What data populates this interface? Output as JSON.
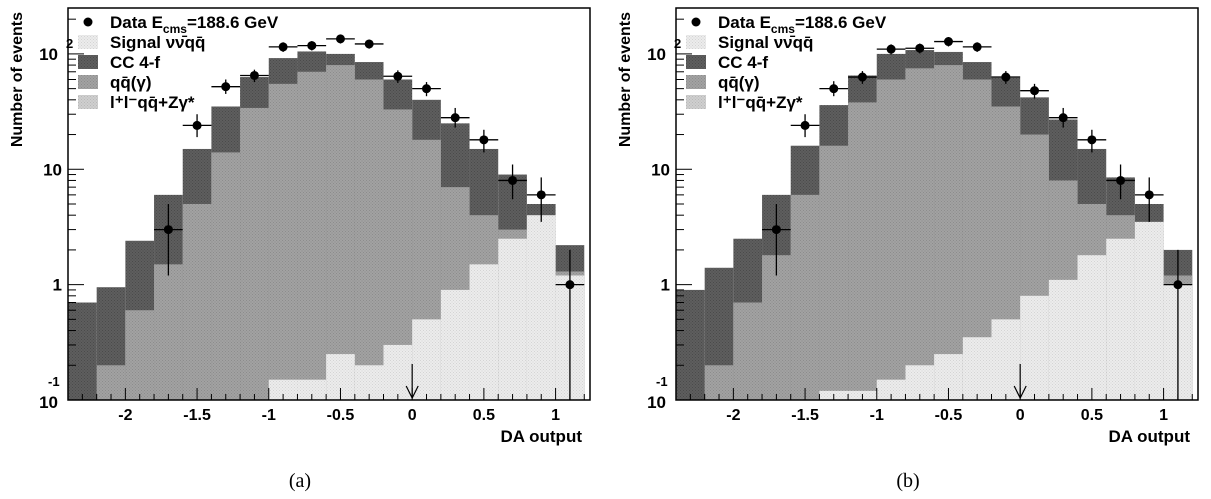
{
  "chart_data": [
    {
      "type": "bar",
      "panel_caption": "(a)",
      "xlabel": "DA output",
      "ylabel": "Number of events",
      "log_y": true,
      "xlim": [
        -2.4,
        1.24
      ],
      "ylim": [
        0.1,
        250
      ],
      "x_ticks": [
        -2,
        -1.5,
        -1,
        -0.5,
        0,
        0.5,
        1
      ],
      "y_tick_labels": [
        {
          "value": 0.1,
          "base": "10",
          "exp": "-1"
        },
        {
          "value": 1,
          "base": "1",
          "exp": ""
        },
        {
          "value": 10,
          "base": "10",
          "exp": ""
        },
        {
          "value": 100,
          "base": "10",
          "exp": "2"
        }
      ],
      "cut_arrow_x": 0,
      "bin_edges": [
        -2.4,
        -2.2,
        -2.0,
        -1.8,
        -1.6,
        -1.4,
        -1.2,
        -1.0,
        -0.8,
        -0.6,
        -0.4,
        -0.2,
        0.0,
        0.2,
        0.4,
        0.6,
        0.8,
        1.0,
        1.2
      ],
      "legend": [
        {
          "label": "Data E",
          "sub": "cms",
          "suffix": "=188.6 GeV",
          "style": "marker"
        },
        {
          "label": "Signal νν̄qq̄",
          "style": "signal"
        },
        {
          "label": "CC 4-f",
          "style": "cc4f"
        },
        {
          "label": "qq̄(γ)",
          "style": "qq"
        },
        {
          "label": "l⁺l⁻qq̄+Zγ*",
          "style": "llqq"
        }
      ],
      "series": [
        {
          "name": "l⁺l⁻qq̄+Zγ*",
          "cumulative_top": [
            0.1,
            0.1,
            0.1,
            0.1,
            0.1,
            0.1,
            0.1,
            0.1,
            0.1,
            0.1,
            0.1,
            0.1,
            0.1,
            0.1,
            0.1,
            0.1,
            0.1,
            0.1
          ]
        },
        {
          "name": "Signal νν̄qq̄",
          "cumulative_top": [
            0.1,
            0.1,
            0.1,
            0.1,
            0.1,
            0.1,
            0.1,
            0.15,
            0.15,
            0.25,
            0.2,
            0.3,
            0.5,
            0.9,
            1.5,
            2.5,
            4.0,
            1.2
          ]
        },
        {
          "name": "qq̄(γ)",
          "cumulative_top": [
            0.1,
            0.2,
            0.6,
            1.5,
            5,
            14,
            34,
            55,
            70,
            80,
            60,
            33,
            18,
            7,
            4,
            3,
            3,
            1.3
          ]
        },
        {
          "name": "CC 4-f",
          "cumulative_top": [
            0.7,
            0.95,
            2.4,
            6,
            15,
            35,
            63,
            92,
            105,
            100,
            85,
            60,
            40,
            25,
            15,
            9,
            5,
            2.2
          ]
        }
      ],
      "data_points": [
        {
          "x": -1.7,
          "y": 3.0,
          "xerr": 0.1,
          "ylo": 1.2,
          "yhi": 5.0
        },
        {
          "x": -1.5,
          "y": 24,
          "xerr": 0.1,
          "ylo": 19,
          "yhi": 30
        },
        {
          "x": -1.3,
          "y": 52,
          "xerr": 0.1,
          "ylo": 45,
          "yhi": 60
        },
        {
          "x": -1.1,
          "y": 65,
          "xerr": 0.1,
          "ylo": 57,
          "yhi": 73
        },
        {
          "x": -0.9,
          "y": 115,
          "xerr": 0.1,
          "ylo": 104,
          "yhi": 126
        },
        {
          "x": -0.7,
          "y": 118,
          "xerr": 0.1,
          "ylo": 107,
          "yhi": 129
        },
        {
          "x": -0.5,
          "y": 135,
          "xerr": 0.1,
          "ylo": 123,
          "yhi": 147
        },
        {
          "x": -0.3,
          "y": 122,
          "xerr": 0.1,
          "ylo": 111,
          "yhi": 133
        },
        {
          "x": -0.1,
          "y": 64,
          "xerr": 0.1,
          "ylo": 56,
          "yhi": 72
        },
        {
          "x": 0.1,
          "y": 50,
          "xerr": 0.1,
          "ylo": 43,
          "yhi": 57
        },
        {
          "x": 0.3,
          "y": 28,
          "xerr": 0.1,
          "ylo": 23,
          "yhi": 34
        },
        {
          "x": 0.5,
          "y": 18,
          "xerr": 0.1,
          "ylo": 14,
          "yhi": 22
        },
        {
          "x": 0.7,
          "y": 8,
          "xerr": 0.1,
          "ylo": 5.5,
          "yhi": 11
        },
        {
          "x": 0.9,
          "y": 6,
          "xerr": 0.1,
          "ylo": 3.5,
          "yhi": 8.5
        },
        {
          "x": 1.1,
          "y": 1.0,
          "xerr": 0.1,
          "ylo": 0.1,
          "yhi": 2.0
        }
      ]
    },
    {
      "type": "bar",
      "panel_caption": "(b)",
      "xlabel": "DA output",
      "ylabel": "Number of events",
      "log_y": true,
      "xlim": [
        -2.4,
        1.24
      ],
      "ylim": [
        0.1,
        250
      ],
      "x_ticks": [
        -2,
        -1.5,
        -1,
        -0.5,
        0,
        0.5,
        1
      ],
      "y_tick_labels": [
        {
          "value": 0.1,
          "base": "10",
          "exp": "-1"
        },
        {
          "value": 1,
          "base": "1",
          "exp": ""
        },
        {
          "value": 10,
          "base": "10",
          "exp": ""
        },
        {
          "value": 100,
          "base": "10",
          "exp": "2"
        }
      ],
      "cut_arrow_x": 0,
      "bin_edges": [
        -2.4,
        -2.2,
        -2.0,
        -1.8,
        -1.6,
        -1.4,
        -1.2,
        -1.0,
        -0.8,
        -0.6,
        -0.4,
        -0.2,
        0.0,
        0.2,
        0.4,
        0.6,
        0.8,
        1.0,
        1.2
      ],
      "legend": [
        {
          "label": "Data E",
          "sub": "cms",
          "suffix": "=188.6 GeV",
          "style": "marker"
        },
        {
          "label": "Signal νν̄qq̄",
          "style": "signal"
        },
        {
          "label": "CC 4-f",
          "style": "cc4f"
        },
        {
          "label": "qq̄(γ)",
          "style": "qq"
        },
        {
          "label": "l⁺l⁻qq̄+Zγ*",
          "style": "llqq"
        }
      ],
      "series": [
        {
          "name": "l⁺l⁻qq̄+Zγ*",
          "cumulative_top": [
            0.1,
            0.1,
            0.1,
            0.1,
            0.1,
            0.1,
            0.1,
            0.1,
            0.1,
            0.1,
            0.1,
            0.1,
            0.1,
            0.1,
            0.1,
            0.1,
            0.1,
            0.1
          ]
        },
        {
          "name": "Signal νν̄qq̄",
          "cumulative_top": [
            0.1,
            0.1,
            0.1,
            0.1,
            0.1,
            0.12,
            0.12,
            0.15,
            0.2,
            0.25,
            0.35,
            0.5,
            0.8,
            1.1,
            1.8,
            2.5,
            3.5,
            1.0
          ]
        },
        {
          "name": "qq̄(γ)",
          "cumulative_top": [
            0.1,
            0.2,
            0.7,
            1.8,
            6,
            16,
            38,
            60,
            75,
            80,
            60,
            35,
            20,
            8,
            5,
            4,
            3,
            1.2
          ]
        },
        {
          "name": "CC 4-f",
          "cumulative_top": [
            0.9,
            1.4,
            2.5,
            6,
            16,
            36,
            65,
            100,
            108,
            104,
            85,
            62,
            42,
            27,
            15,
            8.5,
            5,
            2.0
          ]
        }
      ],
      "data_points": [
        {
          "x": -1.7,
          "y": 3.0,
          "xerr": 0.1,
          "ylo": 1.2,
          "yhi": 5.0
        },
        {
          "x": -1.5,
          "y": 24,
          "xerr": 0.1,
          "ylo": 19,
          "yhi": 30
        },
        {
          "x": -1.3,
          "y": 50,
          "xerr": 0.1,
          "ylo": 43,
          "yhi": 58
        },
        {
          "x": -1.1,
          "y": 63,
          "xerr": 0.1,
          "ylo": 55,
          "yhi": 71
        },
        {
          "x": -0.9,
          "y": 110,
          "xerr": 0.1,
          "ylo": 99,
          "yhi": 121
        },
        {
          "x": -0.7,
          "y": 112,
          "xerr": 0.1,
          "ylo": 101,
          "yhi": 123
        },
        {
          "x": -0.5,
          "y": 128,
          "xerr": 0.1,
          "ylo": 116,
          "yhi": 140
        },
        {
          "x": -0.3,
          "y": 115,
          "xerr": 0.1,
          "ylo": 104,
          "yhi": 126
        },
        {
          "x": -0.1,
          "y": 63,
          "xerr": 0.1,
          "ylo": 55,
          "yhi": 71
        },
        {
          "x": 0.1,
          "y": 48,
          "xerr": 0.1,
          "ylo": 41,
          "yhi": 55
        },
        {
          "x": 0.3,
          "y": 28,
          "xerr": 0.1,
          "ylo": 23,
          "yhi": 34
        },
        {
          "x": 0.5,
          "y": 18,
          "xerr": 0.1,
          "ylo": 14,
          "yhi": 22
        },
        {
          "x": 0.7,
          "y": 8,
          "xerr": 0.1,
          "ylo": 5.5,
          "yhi": 11
        },
        {
          "x": 0.9,
          "y": 6,
          "xerr": 0.1,
          "ylo": 3.5,
          "yhi": 8.5
        },
        {
          "x": 1.1,
          "y": 1.0,
          "xerr": 0.1,
          "ylo": 0.1,
          "yhi": 2.0
        }
      ]
    }
  ],
  "styles": {
    "signal": {
      "fill": "#e6e6e6",
      "pattern": "dots-light"
    },
    "cc4f": {
      "fill": "#5a5a5a",
      "pattern": "dots-dark"
    },
    "qq": {
      "fill": "#9a9a9a",
      "pattern": "dots-mid"
    },
    "llqq": {
      "fill": "#c8c8c8",
      "pattern": "dots-lightmid"
    }
  }
}
